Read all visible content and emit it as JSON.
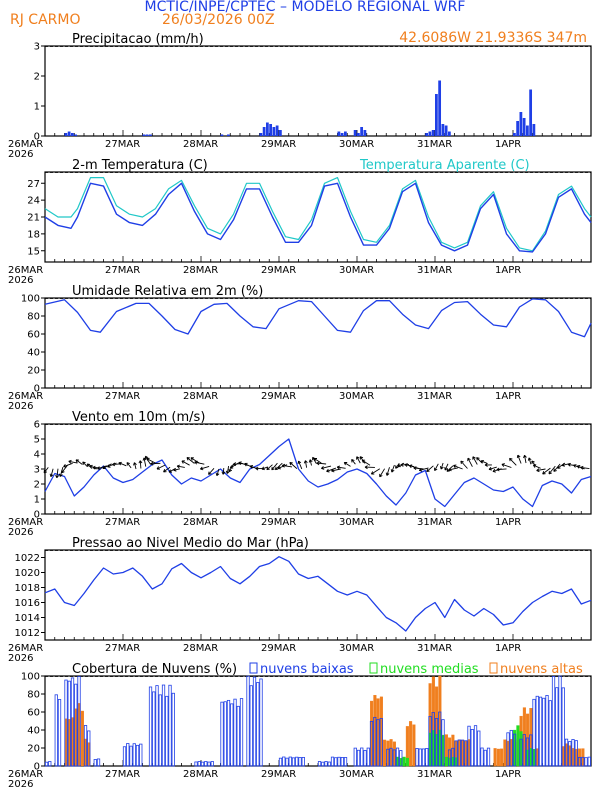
{
  "header": {
    "org": "MCTIC/INPE/CPTEC – MODELO REGIONAL WRF",
    "location": "RJ CARMO",
    "run": "26/03/2026 00Z",
    "coords": "42.6086W  21.9336S  347m"
  },
  "colors": {
    "blue": "#1f3fe6",
    "cyan": "#20c8c8",
    "orange": "#f07f1e",
    "green": "#22dd22",
    "title_orange": "#f07f1e"
  },
  "time_axis": {
    "day_labels": [
      "26MAR",
      "27MAR",
      "28MAR",
      "29MAR",
      "30MAR",
      "31MAR",
      "1APR"
    ],
    "year_label": "2026",
    "hours_per_day": 24,
    "total_hours": 168
  },
  "panels": {
    "precip": {
      "title": "Precipitacao (mm/h)",
      "yticks": [
        "0",
        "1",
        "2",
        "3"
      ],
      "ylim": [
        0,
        3
      ]
    },
    "temp": {
      "title": "2-m Temperatura (C)",
      "legend": "Temperatura Aparente (C)",
      "yticks": [
        "15",
        "18",
        "21",
        "24",
        "27"
      ],
      "ylim": [
        13,
        29
      ]
    },
    "rh": {
      "title": "Umidade Relativa em 2m (%)",
      "yticks": [
        "0",
        "20",
        "40",
        "60",
        "80",
        "100"
      ],
      "ylim": [
        0,
        100
      ]
    },
    "wind": {
      "title": "Vento em 10m (m/s)",
      "yticks": [
        "0",
        "1",
        "2",
        "3",
        "4",
        "5",
        "6"
      ],
      "ylim": [
        0,
        6
      ]
    },
    "slp": {
      "title": "Pressao ao Nivel Medio do Mar (hPa)",
      "yticks": [
        "1012",
        "1014",
        "1016",
        "1018",
        "1020",
        "1022"
      ],
      "ylim": [
        1011,
        1023
      ]
    },
    "clouds": {
      "title": "Cobertura de Nuvens (%)",
      "legend_low": "nuvens baixas",
      "legend_mid": "nuvens medias",
      "legend_high": "nuvens altas",
      "yticks": [
        "0",
        "20",
        "40",
        "60",
        "80",
        "100"
      ],
      "ylim": [
        0,
        100
      ]
    }
  },
  "chart_data": [
    {
      "type": "bar",
      "title": "Precipitacao (mm/h)",
      "x_unit": "hours since 26/03/2026 00Z",
      "ylim": [
        0,
        3
      ],
      "points": [
        [
          6,
          0.1
        ],
        [
          7,
          0.15
        ],
        [
          8,
          0.1
        ],
        [
          9,
          0.05
        ],
        [
          30,
          0.05
        ],
        [
          31,
          0.05
        ],
        [
          32,
          0.05
        ],
        [
          54,
          0.05
        ],
        [
          56,
          0.05
        ],
        [
          66,
          0.1
        ],
        [
          67,
          0.3
        ],
        [
          68,
          0.45
        ],
        [
          69,
          0.4
        ],
        [
          70,
          0.3
        ],
        [
          71,
          0.35
        ],
        [
          72,
          0.2
        ],
        [
          90,
          0.15
        ],
        [
          91,
          0.1
        ],
        [
          92,
          0.15
        ],
        [
          95,
          0.2
        ],
        [
          96,
          0.1
        ],
        [
          97,
          0.3
        ],
        [
          98,
          0.2
        ],
        [
          117,
          0.1
        ],
        [
          118,
          0.15
        ],
        [
          119,
          0.2
        ],
        [
          120,
          1.4
        ],
        [
          121,
          1.85
        ],
        [
          122,
          0.4
        ],
        [
          123,
          0.35
        ],
        [
          124,
          0.15
        ],
        [
          144,
          0.1
        ],
        [
          145,
          0.5
        ],
        [
          146,
          0.8
        ],
        [
          147,
          0.6
        ],
        [
          148,
          0.35
        ],
        [
          149,
          1.55
        ],
        [
          150,
          0.4
        ]
      ]
    },
    {
      "type": "line",
      "title": "2-m Temperatura (C)",
      "ylim": [
        13,
        29
      ],
      "series": [
        {
          "name": "2-m Temperatura (C)",
          "color": "blue",
          "x": [
            0,
            4,
            8,
            10,
            14,
            18,
            22,
            26,
            30,
            34,
            38,
            42,
            46,
            50,
            54,
            58,
            62,
            66,
            70,
            74,
            78,
            82,
            86,
            90,
            94,
            98,
            102,
            106,
            110,
            114,
            118,
            122,
            126,
            130,
            134,
            138,
            142,
            146,
            150,
            154,
            158,
            162,
            166,
            168
          ],
          "values": [
            21,
            19.5,
            19,
            21,
            27,
            26.5,
            21.5,
            20,
            19.5,
            21.5,
            25,
            27,
            22,
            18,
            17,
            20.5,
            26,
            26,
            21,
            16.5,
            16.5,
            19.5,
            26.5,
            27,
            21,
            16,
            16,
            19,
            25.5,
            27,
            20,
            16,
            15,
            16,
            22.5,
            25,
            18,
            15,
            14.8,
            18,
            24.5,
            26,
            21.5,
            20
          ]
        },
        {
          "name": "Temperatura Aparente (C)",
          "color": "cyan",
          "x": [
            0,
            4,
            8,
            10,
            14,
            18,
            22,
            26,
            30,
            34,
            38,
            42,
            46,
            50,
            54,
            58,
            62,
            66,
            70,
            74,
            78,
            82,
            86,
            90,
            94,
            98,
            102,
            106,
            110,
            114,
            118,
            122,
            126,
            130,
            134,
            138,
            142,
            146,
            150,
            154,
            158,
            162,
            166,
            168
          ],
          "values": [
            22.5,
            21,
            21,
            22.5,
            28,
            28,
            23,
            21.5,
            21,
            22.5,
            26,
            27.5,
            23,
            19,
            18,
            21.5,
            27,
            27,
            22,
            17.5,
            17,
            20.5,
            27,
            28,
            22,
            17,
            16.5,
            19.5,
            26,
            27.5,
            21,
            16.5,
            15.5,
            16.5,
            23,
            25.5,
            19,
            15.5,
            15,
            18.5,
            25,
            26.5,
            22.5,
            21
          ]
        }
      ]
    },
    {
      "type": "line",
      "title": "Umidade Relativa em 2m (%)",
      "ylim": [
        0,
        100
      ],
      "series": [
        {
          "name": "Umidade Relativa em 2m (%)",
          "color": "blue",
          "x": [
            0,
            6,
            10,
            14,
            17,
            22,
            28,
            32,
            36,
            40,
            44,
            48,
            52,
            56,
            60,
            64,
            68,
            72,
            78,
            82,
            86,
            90,
            94,
            98,
            102,
            106,
            110,
            114,
            118,
            122,
            126,
            130,
            134,
            138,
            142,
            146,
            150,
            154,
            158,
            162,
            166,
            168
          ],
          "values": [
            93,
            98,
            84,
            64,
            62,
            85,
            94,
            94,
            80,
            65,
            60,
            85,
            93,
            94,
            80,
            68,
            66,
            88,
            97,
            96,
            80,
            64,
            62,
            86,
            97,
            97,
            82,
            70,
            66,
            86,
            95,
            96,
            82,
            70,
            68,
            90,
            99,
            98,
            85,
            62,
            57,
            72
          ]
        }
      ]
    },
    {
      "type": "line",
      "title": "Vento em 10m (m/s)",
      "ylim": [
        0,
        6
      ],
      "series": [
        {
          "name": "Vento em 10m (m/s)",
          "color": "blue",
          "x": [
            0,
            3,
            6,
            9,
            12,
            15,
            18,
            21,
            24,
            27,
            30,
            33,
            36,
            39,
            42,
            45,
            48,
            51,
            54,
            57,
            60,
            63,
            66,
            69,
            72,
            75,
            78,
            81,
            84,
            87,
            90,
            93,
            96,
            99,
            102,
            105,
            108,
            111,
            114,
            117,
            120,
            123,
            126,
            129,
            132,
            135,
            138,
            141,
            144,
            147,
            150,
            153,
            156,
            159,
            162,
            165,
            168
          ],
          "values": [
            1.5,
            2.7,
            2.5,
            1.2,
            1.8,
            2.6,
            3.2,
            2.4,
            2.1,
            2.3,
            2.8,
            3.3,
            3.6,
            2.6,
            2.0,
            2.4,
            2.2,
            2.6,
            3.0,
            2.4,
            2.1,
            3.0,
            3.3,
            3.9,
            4.5,
            5.0,
            3.0,
            2.2,
            1.8,
            2.0,
            2.3,
            2.8,
            3.0,
            2.7,
            2.0,
            1.2,
            0.6,
            1.4,
            2.6,
            2.9,
            1.0,
            0.5,
            1.3,
            2.1,
            2.4,
            2.0,
            1.6,
            1.5,
            1.8,
            1.0,
            0.5,
            1.9,
            2.2,
            2.0,
            1.4,
            2.3,
            2.5
          ]
        }
      ]
    },
    {
      "type": "line",
      "title": "Pressao ao Nivel Medio do Mar (hPa)",
      "ylim": [
        1011,
        1023
      ],
      "series": [
        {
          "name": "Pressao ao Nivel Medio do Mar (hPa)",
          "color": "blue",
          "x": [
            0,
            3,
            6,
            9,
            12,
            15,
            18,
            21,
            24,
            27,
            30,
            33,
            36,
            39,
            42,
            45,
            48,
            51,
            54,
            57,
            60,
            63,
            66,
            69,
            72,
            75,
            78,
            81,
            84,
            87,
            90,
            93,
            96,
            99,
            102,
            105,
            108,
            111,
            114,
            117,
            120,
            123,
            126,
            129,
            132,
            135,
            138,
            141,
            144,
            147,
            150,
            153,
            156,
            159,
            162,
            165,
            168
          ],
          "values": [
            1017.3,
            1017.8,
            1016.0,
            1015.6,
            1017.2,
            1019.0,
            1020.6,
            1019.8,
            1020.0,
            1020.6,
            1019.5,
            1017.8,
            1018.5,
            1020.5,
            1021.2,
            1020.0,
            1019.3,
            1020.0,
            1020.8,
            1019.2,
            1018.5,
            1019.5,
            1020.8,
            1021.2,
            1022.1,
            1021.5,
            1019.8,
            1019.2,
            1019.5,
            1018.5,
            1017.5,
            1017.0,
            1017.5,
            1017.0,
            1015.5,
            1014.0,
            1013.3,
            1012.2,
            1014.0,
            1015.2,
            1016.0,
            1014.0,
            1016.4,
            1015.0,
            1014.2,
            1015.2,
            1014.4,
            1013.0,
            1013.3,
            1014.8,
            1016.0,
            1016.8,
            1017.5,
            1017.2,
            1017.8,
            1015.8,
            1016.3
          ]
        }
      ]
    },
    {
      "type": "bar",
      "title": "Cobertura de Nuvens (%)",
      "series": [
        {
          "name": "nuvens baixas",
          "color": "blue",
          "segments": [
            [
              0,
              2,
              5
            ],
            [
              3,
              5,
              80
            ],
            [
              6,
              11,
              100
            ],
            [
              12,
              14,
              45
            ],
            [
              15,
              17,
              8
            ],
            [
              24,
              30,
              25
            ],
            [
              32,
              40,
              90
            ],
            [
              46,
              52,
              5
            ],
            [
              54,
              61,
              75
            ],
            [
              62,
              67,
              100
            ],
            [
              72,
              80,
              10
            ],
            [
              84,
              88,
              5
            ],
            [
              88,
              93,
              10
            ],
            [
              95,
              100,
              20
            ],
            [
              100,
              104,
              55
            ],
            [
              105,
              110,
              20
            ],
            [
              114,
              118,
              20
            ],
            [
              118,
              123,
              60
            ],
            [
              124,
              126,
              20
            ],
            [
              126,
              130,
              30
            ],
            [
              130,
              134,
              45
            ],
            [
              134,
              137,
              20
            ],
            [
              142,
              145,
              40
            ],
            [
              146,
              150,
              35
            ],
            [
              150,
              156,
              80
            ],
            [
              156,
              160,
              100
            ],
            [
              160,
              164,
              30
            ],
            [
              164,
              168,
              10
            ]
          ]
        },
        {
          "name": "nuvens medias",
          "color": "green",
          "segments": [
            [
              108,
              112,
              10
            ],
            [
              118,
              123,
              40
            ],
            [
              123,
              127,
              10
            ],
            [
              144,
              147,
              45
            ],
            [
              148,
              151,
              20
            ]
          ]
        },
        {
          "name": "nuvens altas",
          "color": "orange",
          "segments": [
            [
              6,
              9,
              55
            ],
            [
              9,
              12,
              70
            ],
            [
              12,
              14,
              30
            ],
            [
              100,
              104,
              80
            ],
            [
              104,
              108,
              30
            ],
            [
              111,
              114,
              50
            ],
            [
              118,
              122,
              100
            ],
            [
              122,
              126,
              35
            ],
            [
              126,
              131,
              30
            ],
            [
              138,
              141,
              20
            ],
            [
              141,
              146,
              30
            ],
            [
              146,
              150,
              65
            ],
            [
              150,
              152,
              20
            ],
            [
              159,
              162,
              25
            ],
            [
              162,
              166,
              20
            ]
          ]
        }
      ]
    }
  ]
}
